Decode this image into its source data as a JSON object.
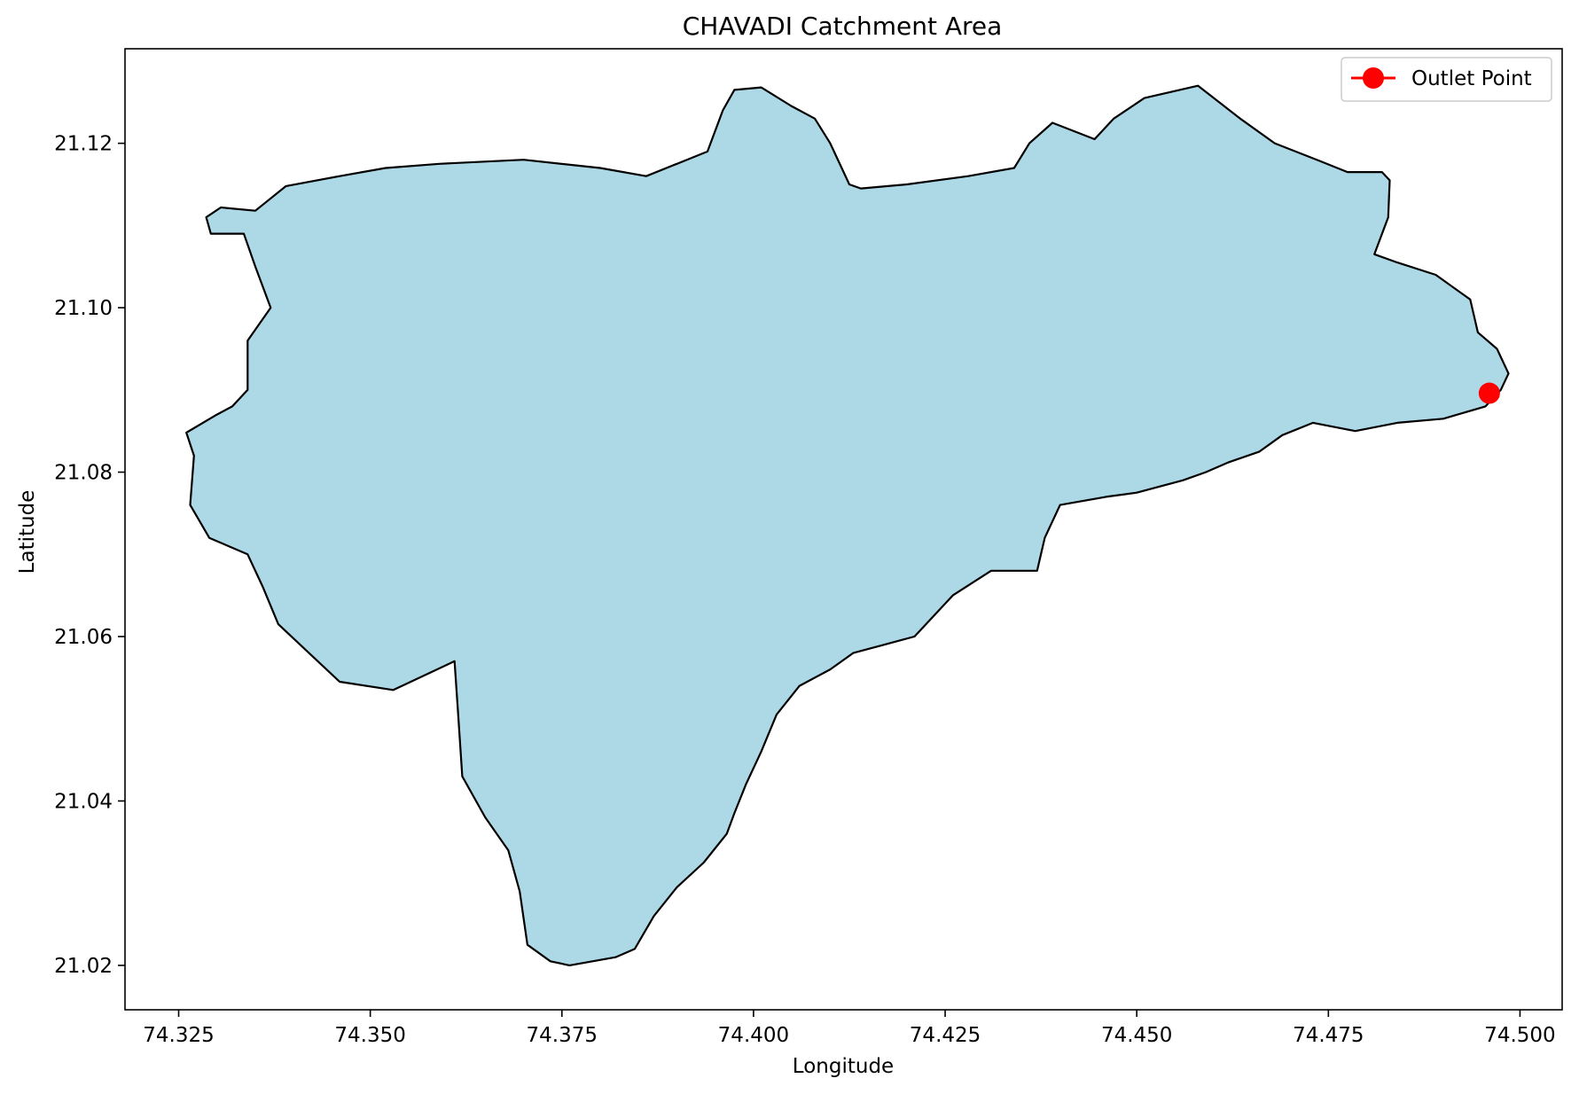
{
  "chart_data": {
    "type": "map",
    "title": "CHAVADI Catchment Area",
    "xlabel": "Longitude",
    "ylabel": "Latitude",
    "xlim": [
      74.318,
      74.5055
    ],
    "ylim": [
      21.0146,
      21.1315
    ],
    "x_ticks": [
      74.325,
      74.35,
      74.375,
      74.4,
      74.425,
      74.45,
      74.475,
      74.5
    ],
    "x_tick_labels": [
      "74.325",
      "74.350",
      "74.375",
      "74.400",
      "74.425",
      "74.450",
      "74.475",
      "74.500"
    ],
    "y_ticks": [
      21.02,
      21.04,
      21.06,
      21.08,
      21.1,
      21.12
    ],
    "y_tick_labels": [
      "21.02",
      "21.04",
      "21.06",
      "21.08",
      "21.10",
      "21.12"
    ],
    "grid": false,
    "legend": {
      "position": "top-right",
      "entries": [
        {
          "label": "Outlet Point",
          "color": "#ff0000",
          "marker": "circle"
        }
      ]
    },
    "catchment": {
      "fill": "#add8e6",
      "edge": "#000000",
      "boundary": [
        [
          74.3286,
          21.111
        ],
        [
          74.3305,
          21.1122
        ],
        [
          74.335,
          21.1118
        ],
        [
          74.339,
          21.1148
        ],
        [
          74.346,
          21.116
        ],
        [
          74.352,
          21.117
        ],
        [
          74.359,
          21.1175
        ],
        [
          74.37,
          21.118
        ],
        [
          74.38,
          21.117
        ],
        [
          74.386,
          21.116
        ],
        [
          74.394,
          21.119
        ],
        [
          74.396,
          21.124
        ],
        [
          74.3975,
          21.1265
        ],
        [
          74.401,
          21.1268
        ],
        [
          74.405,
          21.1245
        ],
        [
          74.408,
          21.123
        ],
        [
          74.41,
          21.12
        ],
        [
          74.4125,
          21.115
        ],
        [
          74.414,
          21.1145
        ],
        [
          74.42,
          21.115
        ],
        [
          74.428,
          21.116
        ],
        [
          74.434,
          21.117
        ],
        [
          74.436,
          21.12
        ],
        [
          74.439,
          21.1225
        ],
        [
          74.4445,
          21.1205
        ],
        [
          74.447,
          21.123
        ],
        [
          74.451,
          21.1255
        ],
        [
          74.458,
          21.127
        ],
        [
          74.4635,
          21.123
        ],
        [
          74.468,
          21.12
        ],
        [
          74.474,
          21.1178
        ],
        [
          74.4775,
          21.1165
        ],
        [
          74.482,
          21.1165
        ],
        [
          74.483,
          21.1155
        ],
        [
          74.4828,
          21.111
        ],
        [
          74.481,
          21.1065
        ],
        [
          74.484,
          21.1055
        ],
        [
          74.489,
          21.104
        ],
        [
          74.4935,
          21.101
        ],
        [
          74.4945,
          21.097
        ],
        [
          74.497,
          21.095
        ],
        [
          74.4985,
          21.092
        ],
        [
          74.4975,
          21.09
        ],
        [
          74.4955,
          21.088
        ],
        [
          74.49,
          21.0865
        ],
        [
          74.484,
          21.086
        ],
        [
          74.4785,
          21.085
        ],
        [
          74.473,
          21.086
        ],
        [
          74.469,
          21.0845
        ],
        [
          74.466,
          21.0825
        ],
        [
          74.462,
          21.0812
        ],
        [
          74.459,
          21.08
        ],
        [
          74.456,
          21.079
        ],
        [
          74.45,
          21.0775
        ],
        [
          74.446,
          21.077
        ],
        [
          74.44,
          21.076
        ],
        [
          74.438,
          21.072
        ],
        [
          74.437,
          21.068
        ],
        [
          74.431,
          21.068
        ],
        [
          74.426,
          21.065
        ],
        [
          74.421,
          21.06
        ],
        [
          74.417,
          21.059
        ],
        [
          74.413,
          21.058
        ],
        [
          74.41,
          21.056
        ],
        [
          74.406,
          21.054
        ],
        [
          74.403,
          21.0505
        ],
        [
          74.401,
          21.046
        ],
        [
          74.399,
          21.042
        ],
        [
          74.3975,
          21.0385
        ],
        [
          74.3965,
          21.036
        ],
        [
          74.3935,
          21.0325
        ],
        [
          74.39,
          21.0295
        ],
        [
          74.387,
          21.026
        ],
        [
          74.3845,
          21.022
        ],
        [
          74.382,
          21.021
        ],
        [
          74.376,
          21.02
        ],
        [
          74.3735,
          21.0205
        ],
        [
          74.3705,
          21.0225
        ],
        [
          74.3695,
          21.029
        ],
        [
          74.368,
          21.034
        ],
        [
          74.365,
          21.038
        ],
        [
          74.362,
          21.043
        ],
        [
          74.3615,
          21.05
        ],
        [
          74.361,
          21.057
        ],
        [
          74.353,
          21.0535
        ],
        [
          74.346,
          21.0545
        ],
        [
          74.342,
          21.058
        ],
        [
          74.338,
          21.0615
        ],
        [
          74.336,
          21.066
        ],
        [
          74.334,
          21.07
        ],
        [
          74.329,
          21.072
        ],
        [
          74.3265,
          21.076
        ],
        [
          74.327,
          21.082
        ],
        [
          74.326,
          21.0848
        ],
        [
          74.33,
          21.087
        ],
        [
          74.332,
          21.088
        ],
        [
          74.334,
          21.09
        ],
        [
          74.334,
          21.096
        ],
        [
          74.337,
          21.1
        ],
        [
          74.335,
          21.105
        ],
        [
          74.3335,
          21.109
        ],
        [
          74.3292,
          21.109
        ]
      ]
    },
    "outlet_point": {
      "label": "Outlet Point",
      "lon": 74.496,
      "lat": 21.0896,
      "color": "#ff0000"
    }
  }
}
